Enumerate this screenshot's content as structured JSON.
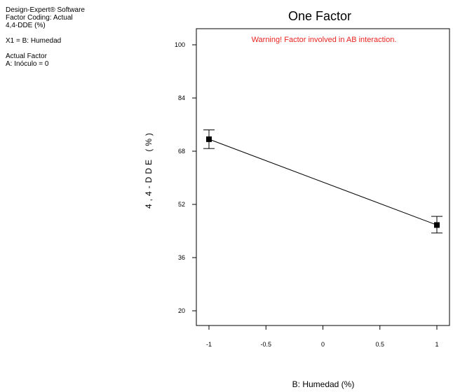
{
  "info_panel": {
    "software": "Design-Expert® Software",
    "coding": "Factor Coding: Actual",
    "response": "4,4-DDE (%)",
    "factor_line": "X1 = B: Humedad",
    "actual_factor_heading": "Actual Factor",
    "actual_factor_value": "A: Inóculo = 0"
  },
  "chart_data": {
    "type": "line",
    "title": "One Factor",
    "warning": "Warning! Factor involved in AB interaction.",
    "xlabel": "B: Humedad (%)",
    "ylabel": "4,4-DDE (%)",
    "xlim": [
      -1.0,
      1.0
    ],
    "ylim": [
      16,
      104
    ],
    "x_ticks": [
      -1,
      -0.5,
      0,
      0.5,
      1
    ],
    "x_tick_labels": [
      "-1",
      "-0.5",
      "0",
      "0.5",
      "1"
    ],
    "y_ticks": [
      20,
      36,
      52,
      68,
      84,
      100
    ],
    "y_tick_labels": [
      "20",
      "36",
      "52",
      "68",
      "84",
      "100"
    ],
    "grid": false,
    "colors": {
      "warning": "#e8231f",
      "line": "#000000"
    },
    "series": [
      {
        "x": [
          -1,
          1
        ],
        "y": [
          71.6,
          45.8
        ],
        "error_low": [
          68.8,
          43.4
        ],
        "error_high": [
          74.4,
          48.4
        ]
      }
    ]
  }
}
